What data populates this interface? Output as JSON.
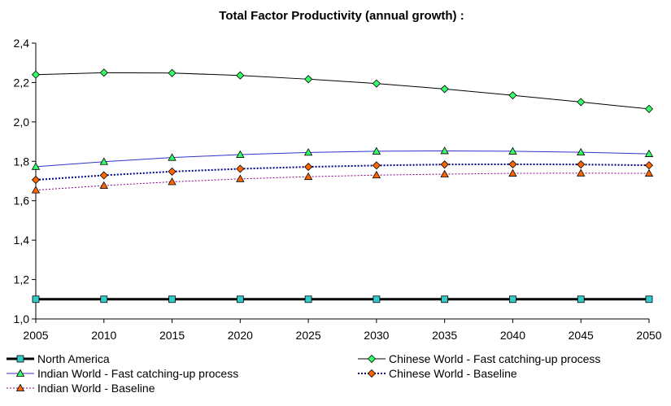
{
  "chart_data": {
    "type": "line",
    "title": "Total Factor Productivity (annual growth) :",
    "xlabel": "",
    "ylabel": "",
    "x": [
      2005,
      2010,
      2015,
      2020,
      2025,
      2030,
      2035,
      2040,
      2045,
      2050
    ],
    "x_tick_labels": [
      "2005",
      "2010",
      "2015",
      "2020",
      "2025",
      "2030",
      "2035",
      "2040",
      "2045",
      "2050"
    ],
    "ylim": [
      1.0,
      2.4
    ],
    "y_ticks": [
      1.0,
      1.2,
      1.4,
      1.6,
      1.8,
      2.0,
      2.2,
      2.4
    ],
    "y_tick_labels": [
      "1,0",
      "1,2",
      "1,4",
      "1,6",
      "1,8",
      "2,0",
      "2,2",
      "2,4"
    ],
    "grid": false,
    "legend_position": "bottom",
    "series": [
      {
        "name": "North America",
        "values": [
          1.1,
          1.1,
          1.1,
          1.1,
          1.1,
          1.1,
          1.1,
          1.1,
          1.1,
          1.1
        ],
        "color": "#000000",
        "marker": "square",
        "marker_color": "#33CCCC",
        "line_style": "solid",
        "line_width": 3
      },
      {
        "name": "Chinese World - Fast catching-up process",
        "values": [
          2.24,
          2.25,
          2.248,
          2.236,
          2.217,
          2.195,
          2.167,
          2.135,
          2.101,
          2.066
        ],
        "color": "#000000",
        "marker": "diamond",
        "marker_color": "#33FF66",
        "line_style": "solid",
        "line_width": 1
      },
      {
        "name": "Indian World - Fast catching-up process",
        "values": [
          1.773,
          1.798,
          1.819,
          1.834,
          1.845,
          1.851,
          1.853,
          1.851,
          1.846,
          1.838
        ],
        "color": "#3333CC",
        "marker": "triangle",
        "marker_color": "#33FF66",
        "line_style": "solid",
        "line_width": 1
      },
      {
        "name": "Chinese World - Baseline",
        "values": [
          1.706,
          1.729,
          1.748,
          1.762,
          1.772,
          1.779,
          1.784,
          1.785,
          1.784,
          1.78
        ],
        "color": "#000080",
        "marker": "diamond",
        "marker_color": "#FF6600",
        "line_style": "dotted",
        "line_width": 2
      },
      {
        "name": "Indian World - Baseline",
        "values": [
          1.654,
          1.677,
          1.696,
          1.711,
          1.722,
          1.73,
          1.735,
          1.739,
          1.74,
          1.739
        ],
        "color": "#800080",
        "marker": "triangle",
        "marker_color": "#FF6600",
        "line_style": "dotted",
        "line_width": 1
      }
    ]
  }
}
